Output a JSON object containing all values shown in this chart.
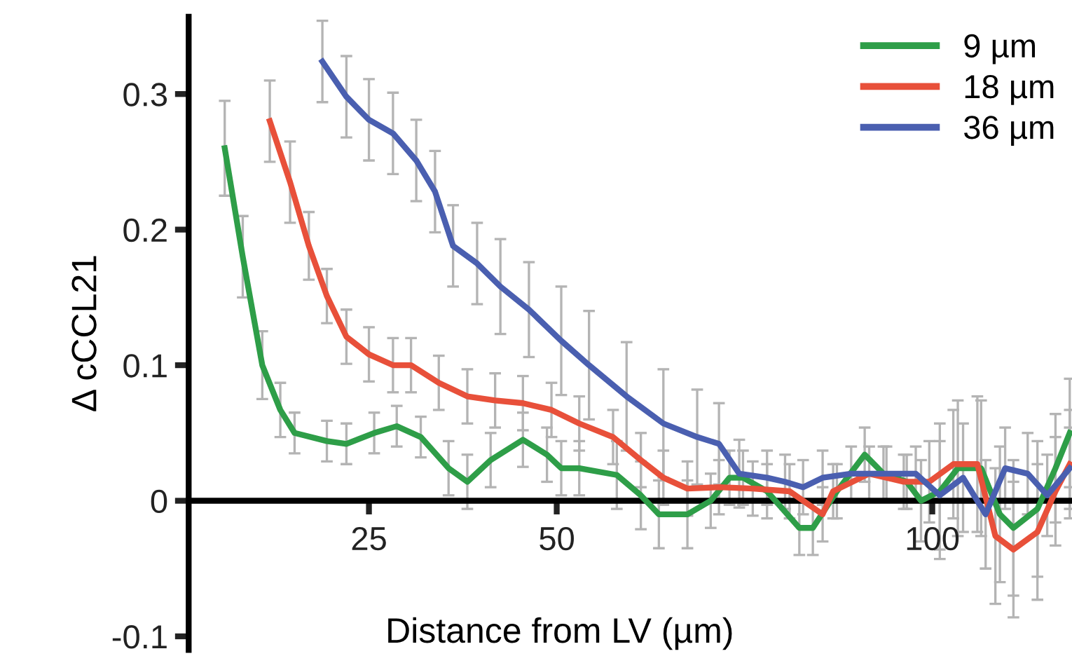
{
  "chart_data": {
    "type": "line",
    "xlabel": "Distance from LV (µm)",
    "ylabel": "Δ cCCL21",
    "xlim": [
      1,
      118.6
    ],
    "ylim": [
      -0.11,
      0.357
    ],
    "xticks": [
      25,
      50,
      100
    ],
    "yticks": [
      -0.1,
      0,
      0.1,
      0.2,
      0.3
    ],
    "legend": "top right",
    "grid": false,
    "marker": "none",
    "line_style": "solid",
    "series": [
      {
        "name": "9 µm",
        "color": "#2e9e48",
        "x": [
          5.8,
          8.2,
          10.8,
          13.2,
          15.1,
          19.4,
          22,
          25.7,
          28.7,
          31.9,
          35.6,
          38.1,
          41.2,
          45.5,
          48.7,
          50.6,
          53,
          58,
          61.2,
          63.6,
          67.4,
          70.5,
          73,
          74.8,
          78,
          82.3,
          84.1,
          87.3,
          91,
          93.5,
          96.6,
          98.5,
          101,
          103.4,
          106.5,
          109,
          110.8,
          114,
          116.4,
          118.3
        ],
        "values": [
          0.26,
          0.18,
          0.1,
          0.067,
          0.05,
          0.044,
          0.042,
          0.05,
          0.055,
          0.047,
          0.024,
          0.014,
          0.03,
          0.045,
          0.034,
          0.024,
          0.024,
          0.019,
          0.004,
          -0.01,
          -0.01,
          0,
          0.017,
          0.017,
          0.007,
          -0.02,
          -0.02,
          0.007,
          0.034,
          0.02,
          0.014,
          0,
          0.007,
          0.024,
          0.024,
          -0.01,
          -0.02,
          -0.006,
          0.024,
          0.05
        ],
        "errors": [
          0.035,
          0.03,
          0.025,
          0.02,
          0.015,
          0.015,
          0.015,
          0.015,
          0.015,
          0.015,
          0.02,
          0.02,
          0.02,
          0.02,
          0.02,
          0.02,
          0.02,
          0.025,
          0.025,
          0.025,
          0.025,
          0.02,
          0.02,
          0.02,
          0.02,
          0.02,
          0.02,
          0.02,
          0.02,
          0.02,
          0.02,
          0.03,
          0.05,
          0.05,
          0.05,
          0.05,
          0.05,
          0.05,
          0.04,
          0.04
        ]
      },
      {
        "name": "18 µm",
        "color": "#e8503a",
        "x": [
          11.8,
          14.5,
          17,
          19.4,
          22,
          25,
          28.2,
          30.6,
          34.3,
          38.1,
          41.8,
          45.5,
          49.3,
          53,
          57.5,
          61.2,
          64.2,
          67.4,
          71.6,
          76.1,
          81,
          85.4,
          86.8,
          91.6,
          96.2,
          99.6,
          102.8,
          106,
          108.4,
          110.8,
          114,
          116.4,
          118.3
        ],
        "values": [
          0.28,
          0.235,
          0.188,
          0.151,
          0.121,
          0.108,
          0.1,
          0.1,
          0.087,
          0.077,
          0.074,
          0.072,
          0.067,
          0.057,
          0.047,
          0.03,
          0.017,
          0.009,
          0.01,
          0.009,
          0.007,
          -0.01,
          0.007,
          0.02,
          0.014,
          0.014,
          0.027,
          0.027,
          -0.026,
          -0.036,
          -0.023,
          0.007,
          0.027
        ],
        "errors": [
          0.03,
          0.03,
          0.025,
          0.02,
          0.02,
          0.02,
          0.02,
          0.02,
          0.02,
          0.02,
          0.02,
          0.02,
          0.02,
          0.02,
          0.02,
          0.02,
          0.02,
          0.02,
          0.02,
          0.02,
          0.02,
          0.02,
          0.02,
          0.02,
          0.02,
          0.03,
          0.04,
          0.05,
          0.05,
          0.05,
          0.05,
          0.04,
          0.04
        ]
      },
      {
        "name": "36 µm",
        "color": "#4a5fb0",
        "x": [
          18.8,
          22,
          25,
          28.2,
          31.3,
          33.8,
          36.2,
          39.4,
          42.5,
          46.3,
          50.6,
          54.3,
          59.3,
          64.2,
          68.7,
          71.6,
          74.3,
          78,
          80.4,
          82.8,
          85.4,
          89.2,
          93.9,
          97.8,
          101,
          104.1,
          107.1,
          109.7,
          112.7,
          115.3,
          118.3
        ],
        "values": [
          0.324,
          0.298,
          0.281,
          0.271,
          0.251,
          0.228,
          0.188,
          0.175,
          0.158,
          0.141,
          0.118,
          0.1,
          0.077,
          0.057,
          0.047,
          0.042,
          0.02,
          0.017,
          0.014,
          0.01,
          0.017,
          0.02,
          0.02,
          0.02,
          0.004,
          0.017,
          -0.01,
          0.024,
          0.02,
          0.004,
          0.024
        ],
        "errors": [
          0.03,
          0.03,
          0.03,
          0.03,
          0.03,
          0.03,
          0.03,
          0.03,
          0.035,
          0.035,
          0.04,
          0.04,
          0.04,
          0.04,
          0.035,
          0.03,
          0.025,
          0.02,
          0.02,
          0.02,
          0.02,
          0.02,
          0.02,
          0.02,
          0.04,
          0.04,
          0.04,
          0.03,
          0.03,
          0.03,
          0.03
        ]
      }
    ]
  }
}
